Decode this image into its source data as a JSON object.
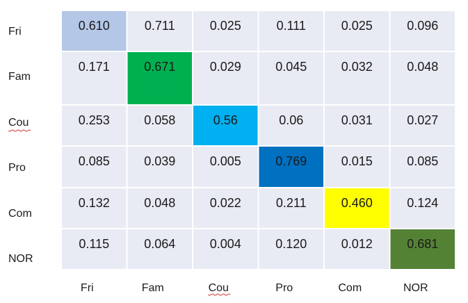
{
  "chart_data": {
    "type": "heatmap",
    "row_labels": [
      "Fri",
      "Fam",
      "Cou",
      "Pro",
      "Com",
      "NOR"
    ],
    "col_labels": [
      "Fri",
      "Fam",
      "Cou",
      "Pro",
      "Com",
      "NOR"
    ],
    "values": [
      [
        "0.610",
        "0.711",
        "0.025",
        "0.111",
        "0.025",
        "0.096"
      ],
      [
        "0.171",
        "0.671",
        "0.029",
        "0.045",
        "0.032",
        "0.048"
      ],
      [
        "0.253",
        "0.058",
        "0.56",
        "0.06",
        "0.031",
        "0.027"
      ],
      [
        "0.085",
        "0.039",
        "0.005",
        "0.769",
        "0.015",
        "0.085"
      ],
      [
        "0.132",
        "0.048",
        "0.022",
        "0.211",
        "0.460",
        "0.124"
      ],
      [
        "0.115",
        "0.064",
        "0.004",
        "0.120",
        "0.012",
        "0.681"
      ]
    ],
    "default_cell_color": "#e8ebf4",
    "highlight_colors": [
      "#b4c7e7",
      "#00b050",
      "#00b0f0",
      "#0070c0",
      "#ffff00",
      "#548235"
    ],
    "grid": true
  }
}
